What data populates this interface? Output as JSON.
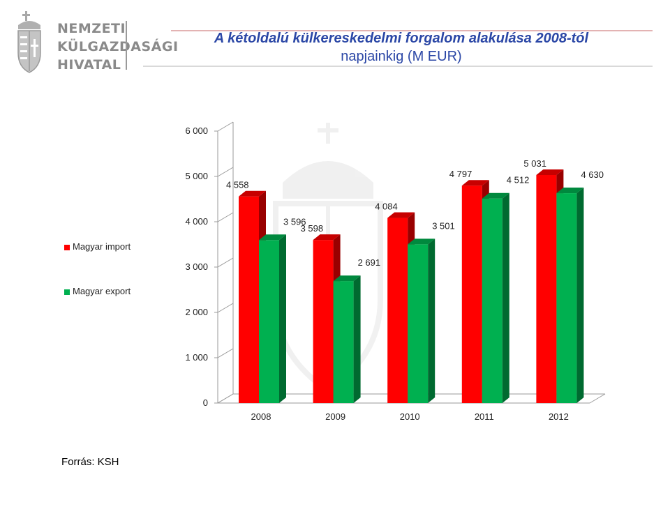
{
  "header": {
    "logo_lines": [
      "NEMZETI",
      "KÜLGAZDASÁGI",
      "HIVATAL"
    ],
    "title_line1": "A kétoldalú külkereskedelmi forgalom alakulása 2008-tól",
    "title_line2": "napjainkig (M EUR)"
  },
  "colors": {
    "import": "#ff0000",
    "export": "#00b050",
    "title": "#2b47a6"
  },
  "chart_data": {
    "type": "bar",
    "title": "A kétoldalú külkereskedelmi forgalom alakulása 2008-tól napjainkig (M EUR)",
    "categories": [
      "2008",
      "2009",
      "2010",
      "2011",
      "2012"
    ],
    "series": [
      {
        "name": "Magyar import",
        "values": [
          4558,
          3598,
          4084,
          4797,
          5031
        ]
      },
      {
        "name": "Magyar export",
        "values": [
          3596,
          2691,
          3501,
          4512,
          4630
        ]
      }
    ],
    "data_labels": {
      "import": [
        "4 558",
        "3 598",
        "4 084",
        "4 797",
        "5 031"
      ],
      "export": [
        "3 596",
        "2 691",
        "3 501",
        "4 512",
        "4 630"
      ]
    },
    "ylim": [
      0,
      6000
    ],
    "yticks": [
      0,
      1000,
      2000,
      3000,
      4000,
      5000,
      6000
    ],
    "ytick_labels": [
      "0",
      "1 000",
      "2 000",
      "3 000",
      "4 000",
      "5 000",
      "6 000"
    ],
    "grid": false,
    "legend_position": "left"
  },
  "legend": {
    "import_label": "Magyar import",
    "export_label": "Magyar export"
  },
  "source": "Forrás: KSH"
}
